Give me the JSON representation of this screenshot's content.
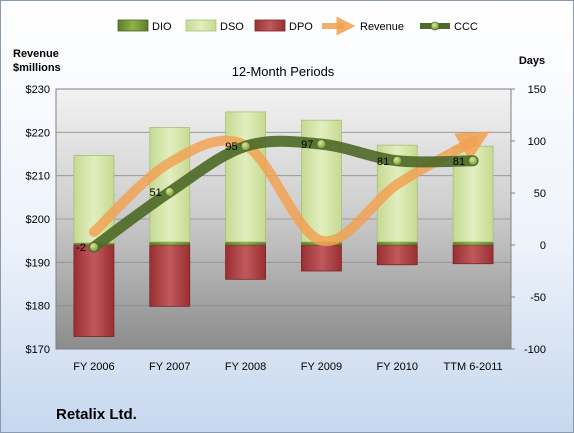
{
  "chart_data": {
    "type": "bar",
    "title": "12-Month Periods",
    "company": "Retalix Ltd.",
    "left_axis_title_line1": "Revenue",
    "left_axis_title_line2": "$millions",
    "right_axis_title": "Days",
    "categories": [
      "FY 2006",
      "FY 2007",
      "FY 2008",
      "FY 2009",
      "FY 2010",
      "TTM 6-2011"
    ],
    "left_ylim": [
      170,
      230
    ],
    "left_ticks": [
      230,
      220,
      210,
      200,
      190,
      180,
      170
    ],
    "left_tick_labels": [
      "$230",
      "$220",
      "$210",
      "$200",
      "$190",
      "$180",
      "$170"
    ],
    "right_ylim": [
      -100,
      150
    ],
    "right_ticks": [
      150,
      100,
      50,
      0,
      -50,
      -100
    ],
    "right_tick_labels": [
      "150",
      "100",
      "50",
      "0",
      "-50",
      "-100"
    ],
    "legend_position": "top",
    "series": [
      {
        "name": "DIO",
        "axis": "right",
        "kind": "bar",
        "color": "#6b8c2e",
        "values": [
          2,
          3,
          3,
          3,
          3,
          3
        ]
      },
      {
        "name": "DSO",
        "axis": "right",
        "kind": "bar",
        "color": "#d4e4a8",
        "values": [
          84,
          110,
          125,
          117,
          93,
          92
        ]
      },
      {
        "name": "DPO",
        "axis": "right",
        "kind": "bar",
        "color": "#a8373a",
        "values": [
          -88,
          -59,
          -33,
          -25,
          -19,
          -18
        ]
      },
      {
        "name": "Revenue",
        "axis": "left",
        "kind": "line",
        "color": "#f2a050",
        "values": [
          197,
          213,
          217,
          195,
          208,
          218
        ]
      },
      {
        "name": "CCC",
        "axis": "right",
        "kind": "line",
        "color": "#4f6a28",
        "values": [
          -2,
          51,
          95,
          97,
          81,
          81
        ]
      }
    ],
    "data_labels": [
      "-2",
      "51",
      "95",
      "97",
      "81",
      "81"
    ]
  }
}
